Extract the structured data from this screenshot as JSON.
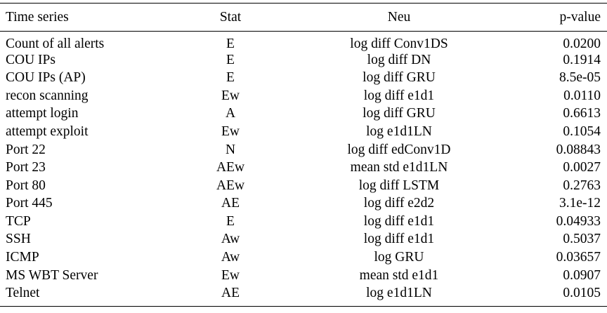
{
  "table": {
    "headers": {
      "series": "Time series",
      "stat": "Stat",
      "neu": "Neu",
      "pvalue": "p-value"
    },
    "rows": [
      {
        "series": "Count of all alerts",
        "stat": "E",
        "neu": "log diff Conv1DS",
        "pvalue": "0.0200"
      },
      {
        "series": "COU IPs",
        "stat": "E",
        "neu": "log diff DN",
        "pvalue": "0.1914"
      },
      {
        "series": "COU IPs (AP)",
        "stat": "E",
        "neu": "log diff GRU",
        "pvalue": "8.5e-05"
      },
      {
        "series": "recon scanning",
        "stat": "Ew",
        "neu": "log diff e1d1",
        "pvalue": "0.0110"
      },
      {
        "series": "attempt login",
        "stat": "A",
        "neu": "log diff GRU",
        "pvalue": "0.6613"
      },
      {
        "series": "attempt exploit",
        "stat": "Ew",
        "neu": "log e1d1LN",
        "pvalue": "0.1054"
      },
      {
        "series": "Port 22",
        "stat": "N",
        "neu": "log diff edConv1D",
        "pvalue": "0.08843"
      },
      {
        "series": "Port 23",
        "stat": "AEw",
        "neu": "mean std e1d1LN",
        "pvalue": "0.0027"
      },
      {
        "series": "Port 80",
        "stat": "AEw",
        "neu": "log diff LSTM",
        "pvalue": "0.2763"
      },
      {
        "series": "Port 445",
        "stat": "AE",
        "neu": "log diff e2d2",
        "pvalue": "3.1e-12"
      },
      {
        "series": "TCP",
        "stat": "E",
        "neu": "log diff e1d1",
        "pvalue": "0.04933"
      },
      {
        "series": "SSH",
        "stat": "Aw",
        "neu": "log diff e1d1",
        "pvalue": "0.5037"
      },
      {
        "series": "ICMP",
        "stat": "Aw",
        "neu": "log GRU",
        "pvalue": "0.03657"
      },
      {
        "series": "MS WBT Server",
        "stat": "Ew",
        "neu": "mean std e1d1",
        "pvalue": "0.0907"
      },
      {
        "series": "Telnet",
        "stat": "AE",
        "neu": "log e1d1LN",
        "pvalue": "0.0105"
      }
    ]
  }
}
